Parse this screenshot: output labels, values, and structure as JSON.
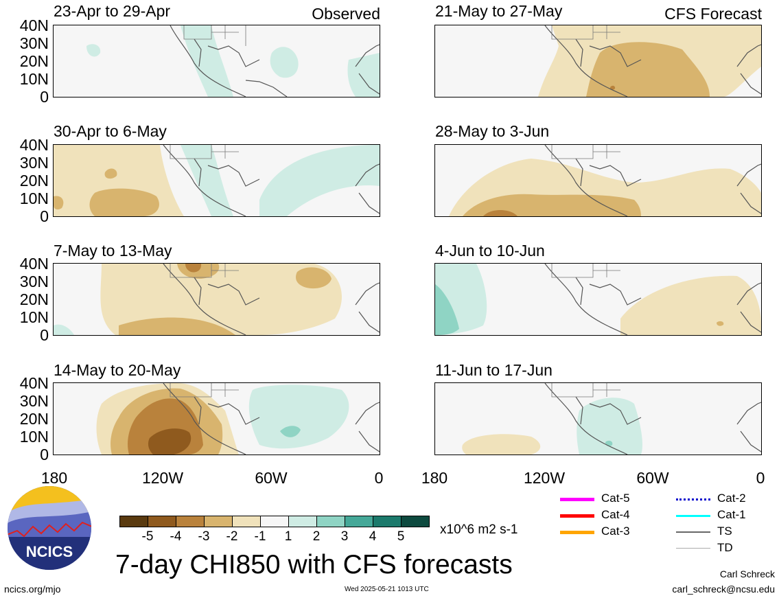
{
  "panels_left": {
    "p1": {
      "title": "23-Apr to 29-Apr",
      "tag": "Observed"
    },
    "p2": {
      "title": "30-Apr to 6-May"
    },
    "p3": {
      "title": "7-May to 13-May"
    },
    "p4": {
      "title": "14-May to 20-May"
    }
  },
  "panels_right": {
    "p1": {
      "title": "21-May to 27-May",
      "tag": "CFS Forecast"
    },
    "p2": {
      "title": "28-May to 3-Jun"
    },
    "p3": {
      "title": "4-Jun to 10-Jun"
    },
    "p4": {
      "title": "11-Jun to 17-Jun"
    }
  },
  "lat_labels": [
    "40N",
    "30N",
    "20N",
    "10N",
    "0"
  ],
  "lon_labels": [
    "180",
    "120W",
    "60W",
    "0"
  ],
  "colorbar": {
    "colors": [
      "#5a3a0f",
      "#8f5a1e",
      "#b9823c",
      "#d8b46e",
      "#f0e2bb",
      "#f6f6f6",
      "#cfece4",
      "#8fd4c4",
      "#45a898",
      "#1c7a6c",
      "#0d4a3f"
    ],
    "labels": [
      "-5",
      "-4",
      "-3",
      "-2",
      "-1",
      "1",
      "2",
      "3",
      "4",
      "5"
    ],
    "units": "x10^6 m2 s-1"
  },
  "legend": [
    {
      "label": "Cat-5",
      "color": "#ff00ff"
    },
    {
      "label": "Cat-4",
      "color": "#ff0000"
    },
    {
      "label": "Cat-3",
      "color": "#ffa500"
    },
    {
      "label": "Cat-2",
      "color": "#0000cc"
    },
    {
      "label": "Cat-1",
      "color": "#00ffff"
    },
    {
      "label": "TS",
      "color": "#666666"
    },
    {
      "label": "TD",
      "color": "#aaaaaa"
    }
  ],
  "logo": {
    "text": "NCICS"
  },
  "main_title": "7-day CHI850 with CFS forecasts",
  "footer": {
    "url": "ncics.org/mjo",
    "timestamp": "Wed 2025-05-21 1013 UTC",
    "author": "Carl Schreck",
    "email": "carl_schreck@ncsu.edu"
  }
}
